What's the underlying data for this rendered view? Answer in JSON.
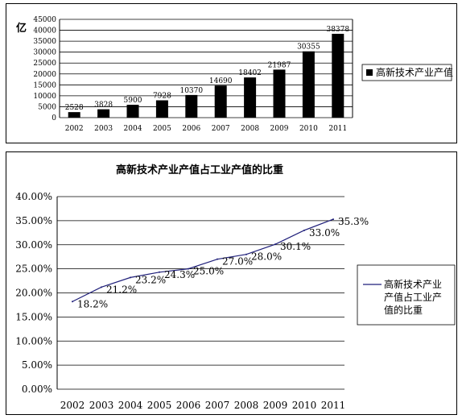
{
  "chart_data": [
    {
      "type": "bar",
      "title": "",
      "ylabel": "亿",
      "xlabel": "",
      "ylim": [
        0,
        45000
      ],
      "yticks": [
        0,
        5000,
        10000,
        15000,
        20000,
        25000,
        30000,
        35000,
        40000,
        45000
      ],
      "categories": [
        "2002",
        "2003",
        "2004",
        "2005",
        "2006",
        "2007",
        "2008",
        "2009",
        "2010",
        "2011"
      ],
      "series": [
        {
          "name": "高新技术产业产值",
          "values": [
            2528,
            3828,
            5900,
            7928,
            10370,
            14690,
            18402,
            21987,
            30355,
            38378
          ],
          "labels": [
            "2528",
            "3828",
            "5900",
            "7928",
            "10370",
            "14690",
            "18402",
            "21987",
            "30355",
            "38378"
          ]
        }
      ],
      "grid": true,
      "legend": "right",
      "colors": {
        "bar": "#000000",
        "grid": "#000000"
      }
    },
    {
      "type": "line",
      "title": "高新技术产业产值占工业产值的比重",
      "xlabel": "",
      "ylabel": "",
      "ylim": [
        0,
        40
      ],
      "yticks": [
        "0.00%",
        "5.00%",
        "10.00%",
        "15.00%",
        "20.00%",
        "25.00%",
        "30.00%",
        "35.00%",
        "40.00%"
      ],
      "categories": [
        "2002",
        "2003",
        "2004",
        "2005",
        "2006",
        "2007",
        "2008",
        "2009",
        "2010",
        "2011"
      ],
      "series": [
        {
          "name": "高新技术产业产值占工业产值的比重",
          "values": [
            18.2,
            21.2,
            23.2,
            24.3,
            25.0,
            27.0,
            28.0,
            30.1,
            33.0,
            35.3
          ],
          "labels": [
            "18.2%",
            "21.2%",
            "23.2%",
            "24.3%",
            "25.0%",
            "27.0%",
            "28.0%",
            "30.1%",
            "33.0%",
            "35.3%"
          ]
        }
      ],
      "grid": true,
      "legend": "right",
      "colors": {
        "line": "#1f1f7a",
        "grid": "#000000"
      }
    }
  ]
}
